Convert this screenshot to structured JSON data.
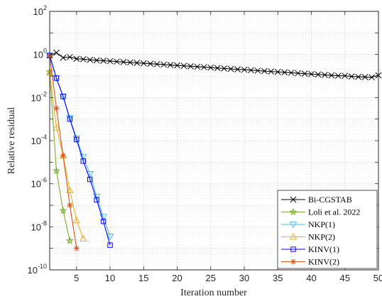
{
  "chart_data": {
    "type": "line",
    "xlabel": "Iteration number",
    "ylabel": "Relative residual",
    "xlim": [
      1,
      50
    ],
    "ylim_log10": [
      -10,
      2
    ],
    "yscale": "log",
    "grid": true,
    "minor_grid": true,
    "legend_position": "bottom-right",
    "xticks": [
      "5",
      "10",
      "15",
      "20",
      "25",
      "30",
      "35",
      "40",
      "45",
      "50"
    ],
    "yticks": [
      {
        "base": "10",
        "exp": "2"
      },
      {
        "base": "10",
        "exp": "0"
      },
      {
        "base": "10",
        "exp": "-2"
      },
      {
        "base": "10",
        "exp": "-4"
      },
      {
        "base": "10",
        "exp": "-6"
      },
      {
        "base": "10",
        "exp": "-8"
      },
      {
        "base": "10",
        "exp": "-10"
      }
    ],
    "series": [
      {
        "name": "Bi-CGSTAB",
        "color": "#000000",
        "marker": "x",
        "x": [
          1,
          2,
          3,
          4,
          5,
          6,
          7,
          8,
          9,
          10,
          11,
          12,
          13,
          14,
          15,
          16,
          17,
          18,
          19,
          20,
          21,
          22,
          23,
          24,
          25,
          26,
          27,
          28,
          29,
          30,
          31,
          32,
          33,
          34,
          35,
          36,
          37,
          38,
          39,
          40,
          41,
          42,
          43,
          44,
          45,
          46,
          47,
          48,
          49,
          50
        ],
        "log10y": [
          -0.05,
          0.08,
          -0.15,
          -0.12,
          -0.2,
          -0.22,
          -0.25,
          -0.27,
          -0.29,
          -0.31,
          -0.33,
          -0.35,
          -0.37,
          -0.39,
          -0.41,
          -0.43,
          -0.45,
          -0.47,
          -0.49,
          -0.51,
          -0.53,
          -0.55,
          -0.57,
          -0.59,
          -0.61,
          -0.63,
          -0.65,
          -0.67,
          -0.69,
          -0.71,
          -0.73,
          -0.75,
          -0.77,
          -0.79,
          -0.81,
          -0.83,
          -0.85,
          -0.87,
          -0.89,
          -0.91,
          -0.93,
          -0.95,
          -0.97,
          -0.99,
          -0.99,
          -1.02,
          -1.04,
          -1.05,
          -1.06,
          -0.97
        ]
      },
      {
        "name": "Loli et al. 2022",
        "color": "#77AC30",
        "marker": "star",
        "x": [
          1,
          2,
          3,
          4
        ],
        "log10y": [
          -0.8,
          -5.4,
          -7.25,
          -8.65
        ]
      },
      {
        "name": "NKP(1)",
        "color": "#4DBEEE",
        "marker": "triangle-down",
        "x": [
          1,
          2,
          3,
          4,
          5,
          6,
          7,
          8,
          9,
          10
        ],
        "log10y": [
          -0.05,
          -1.1,
          -1.95,
          -2.95,
          -3.9,
          -4.75,
          -5.55,
          -6.6,
          -7.55,
          -8.45
        ]
      },
      {
        "name": "NKP(2)",
        "color": "#EDB120",
        "marker": "triangle-up",
        "x": [
          1,
          2,
          3,
          4,
          5,
          6
        ],
        "log10y": [
          -0.85,
          -3.4,
          -4.7,
          -6.3,
          -7.7,
          -8.55
        ]
      },
      {
        "name": "KINV(1)",
        "color": "#0000FF",
        "marker": "square",
        "x": [
          1,
          2,
          3,
          4,
          5,
          6,
          7,
          8,
          9,
          10
        ],
        "log10y": [
          -0.05,
          -1.1,
          -1.95,
          -3.0,
          -3.95,
          -4.95,
          -5.8,
          -6.75,
          -7.75,
          -8.85
        ]
      },
      {
        "name": "KINV(2)",
        "color": "#D95319",
        "marker": "asterisk",
        "x": [
          1,
          2,
          3,
          4,
          5
        ],
        "log10y": [
          -0.05,
          -2.5,
          -4.7,
          -7.0,
          -9.0
        ]
      }
    ]
  }
}
